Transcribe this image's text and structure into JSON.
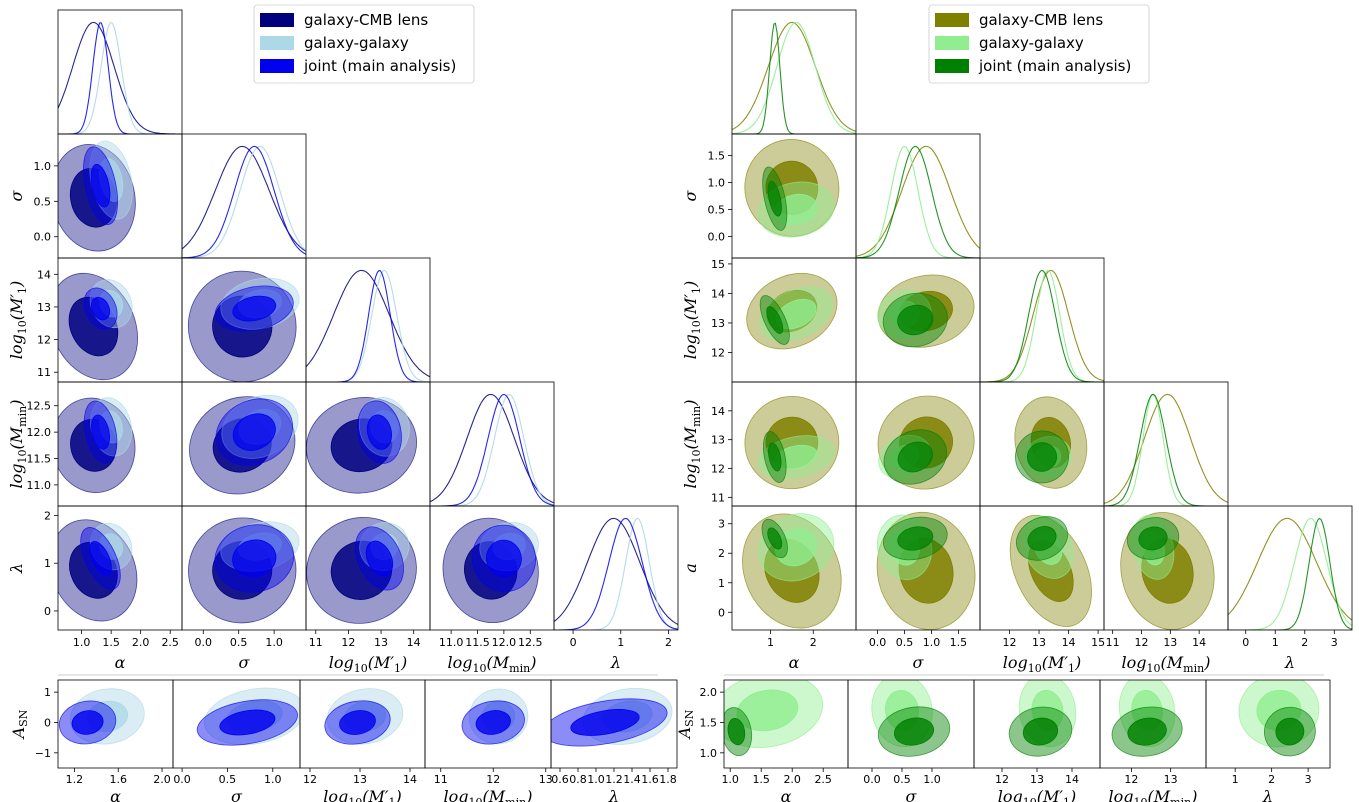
{
  "chart_data": [
    {
      "type": "corner",
      "panel": "left",
      "legend_placement": "top-right",
      "palette": {
        "lens": "#00007f",
        "gg": "#add8e6",
        "joint": "#0000ee"
      },
      "legend": [
        "galaxy-CMB lens",
        "galaxy-galaxy",
        "joint (main analysis)"
      ],
      "parameters": [
        {
          "label": "α",
          "range": [
            0.6,
            2.7
          ],
          "ticks": [
            {
              "v": 1.0,
              "t": "1.0"
            },
            {
              "v": 1.5,
              "t": "1.5"
            },
            {
              "v": 2.0,
              "t": "2.0"
            },
            {
              "v": 2.5,
              "t": "2.5"
            }
          ],
          "lens": {
            "mean": 1.2,
            "sd": 0.35
          },
          "gg": {
            "mean": 1.5,
            "sd": 0.17
          },
          "joint": {
            "mean": 1.32,
            "sd": 0.13
          }
        },
        {
          "label": "σ",
          "range": [
            -0.3,
            1.45
          ],
          "ticks": [
            {
              "v": 0.0,
              "t": "0.0"
            },
            {
              "v": 0.5,
              "t": "0.5"
            },
            {
              "v": 1.0,
              "t": "1.0"
            }
          ],
          "lens": {
            "mean": 0.55,
            "sd": 0.38
          },
          "gg": {
            "mean": 0.8,
            "sd": 0.28
          },
          "joint": {
            "mean": 0.72,
            "sd": 0.28
          }
        },
        {
          "label": "log",
          "range": [
            10.7,
            14.5
          ],
          "ticks": [
            {
              "v": 11,
              "t": "11"
            },
            {
              "v": 12,
              "t": "12"
            },
            {
              "v": 13,
              "t": "13"
            },
            {
              "v": 14,
              "t": "14"
            }
          ],
          "lens": {
            "mean": 12.4,
            "sd": 0.85
          },
          "gg": {
            "mean": 13.1,
            "sd": 0.38
          },
          "joint": {
            "mean": 12.95,
            "sd": 0.33
          }
        },
        {
          "label": "log",
          "range": [
            10.6,
            12.95
          ],
          "ticks": [
            {
              "v": 11.0,
              "t": "11.0"
            },
            {
              "v": 11.5,
              "t": "11.5"
            },
            {
              "v": 12.0,
              "t": "12.0"
            },
            {
              "v": 12.5,
              "t": "12.5"
            }
          ],
          "lens": {
            "mean": 11.75,
            "sd": 0.45
          },
          "gg": {
            "mean": 12.1,
            "sd": 0.28
          },
          "joint": {
            "mean": 12.0,
            "sd": 0.3
          }
        },
        {
          "label": "λ",
          "range": [
            -0.4,
            2.2
          ],
          "ticks": [
            {
              "v": 0,
              "t": "0"
            },
            {
              "v": 1,
              "t": "1"
            },
            {
              "v": 2,
              "t": "2"
            }
          ],
          "lens": {
            "mean": 0.85,
            "sd": 0.55
          },
          "gg": {
            "mean": 1.35,
            "sd": 0.25
          },
          "joint": {
            "mean": 1.1,
            "sd": 0.35
          }
        }
      ],
      "y_tick_rows": [
        [
          {
            "v": 0.0,
            "t": "0.0"
          },
          {
            "v": 0.5,
            "t": "0.5"
          },
          {
            "v": 1.0,
            "t": "1.0"
          }
        ],
        [
          {
            "v": 11,
            "t": "11"
          },
          {
            "v": 12,
            "t": "12"
          },
          {
            "v": 13,
            "t": "13"
          },
          {
            "v": 14,
            "t": "14"
          }
        ],
        [
          {
            "v": 11.0,
            "t": "11.0"
          },
          {
            "v": 11.5,
            "t": "11.5"
          },
          {
            "v": 12.0,
            "t": "12.0"
          },
          {
            "v": 12.5,
            "t": "12.5"
          }
        ],
        [
          {
            "v": 0,
            "t": "0"
          },
          {
            "v": 1,
            "t": "1"
          },
          {
            "v": 2,
            "t": "2"
          }
        ]
      ],
      "extra_row": {
        "label": "A",
        "label_sub": "SN",
        "range": [
          -1.5,
          1.4
        ],
        "ticks": [
          {
            "v": -1,
            "t": "−1"
          },
          {
            "v": 0,
            "t": "0"
          },
          {
            "v": 1,
            "t": "1"
          }
        ],
        "gg": {
          "mean": 0.2,
          "sd": 0.45
        },
        "joint": {
          "mean": 0.0,
          "sd": 0.35
        },
        "x_ticks": [
          [
            {
              "v": 1.2,
              "t": "1.2"
            },
            {
              "v": 1.6,
              "t": "1.6"
            },
            {
              "v": 2.0,
              "t": "2.0"
            }
          ],
          [
            {
              "v": 0.0,
              "t": "0.0"
            },
            {
              "v": 0.5,
              "t": "0.5"
            },
            {
              "v": 1.0,
              "t": "1.0"
            }
          ],
          [
            {
              "v": 12,
              "t": "12"
            },
            {
              "v": 13,
              "t": "13"
            },
            {
              "v": 14,
              "t": "14"
            }
          ],
          [
            {
              "v": 11,
              "t": "11"
            },
            {
              "v": 12,
              "t": "12"
            },
            {
              "v": 13,
              "t": "13"
            }
          ],
          [
            {
              "v": 0.6,
              "t": "0.6"
            },
            {
              "v": 0.8,
              "t": "0.8"
            },
            {
              "v": 1.0,
              "t": "1.0"
            },
            {
              "v": 1.2,
              "t": "1.2"
            },
            {
              "v": 1.4,
              "t": "1.4"
            },
            {
              "v": 1.6,
              "t": "1.6"
            },
            {
              "v": 1.8,
              "t": "1.8"
            }
          ]
        ],
        "x_ranges": [
          [
            1.05,
            2.1
          ],
          [
            -0.1,
            1.3
          ],
          [
            11.8,
            14.3
          ],
          [
            10.7,
            13.1
          ],
          [
            0.5,
            1.9
          ]
        ]
      }
    },
    {
      "type": "corner",
      "panel": "right",
      "legend_placement": "top-right",
      "palette": {
        "lens": "#7f7f00",
        "gg": "#90ee90",
        "joint": "#008000"
      },
      "legend": [
        "galaxy-CMB lens",
        "galaxy-galaxy",
        "joint (main analysis)"
      ],
      "parameters": [
        {
          "label": "α",
          "range": [
            0.1,
            3.0
          ],
          "ticks": [
            {
              "v": 1,
              "t": "1"
            },
            {
              "v": 2,
              "t": "2"
            }
          ],
          "lens": {
            "mean": 1.5,
            "sd": 0.55
          },
          "gg": {
            "mean": 1.6,
            "sd": 0.45
          },
          "joint": {
            "mean": 1.1,
            "sd": 0.12
          }
        },
        {
          "label": "σ",
          "range": [
            -0.4,
            1.9
          ],
          "ticks": [
            {
              "v": 0.0,
              "t": "0.0"
            },
            {
              "v": 0.5,
              "t": "0.5"
            },
            {
              "v": 1.0,
              "t": "1.0"
            },
            {
              "v": 1.5,
              "t": "1.5"
            }
          ],
          "lens": {
            "mean": 0.9,
            "sd": 0.45
          },
          "gg": {
            "mean": 0.5,
            "sd": 0.25
          },
          "joint": {
            "mean": 0.7,
            "sd": 0.3
          }
        },
        {
          "label": "log",
          "range": [
            11.0,
            15.2
          ],
          "ticks": [
            {
              "v": 12,
              "t": "12"
            },
            {
              "v": 13,
              "t": "13"
            },
            {
              "v": 14,
              "t": "14"
            },
            {
              "v": 15,
              "t": "15"
            }
          ],
          "lens": {
            "mean": 13.4,
            "sd": 0.6
          },
          "gg": {
            "mean": 13.3,
            "sd": 0.4
          },
          "joint": {
            "mean": 13.1,
            "sd": 0.45
          }
        },
        {
          "label": "log",
          "range": [
            10.7,
            15.0
          ],
          "ticks": [
            {
              "v": 11,
              "t": "11"
            },
            {
              "v": 12,
              "t": "12"
            },
            {
              "v": 13,
              "t": "13"
            },
            {
              "v": 14,
              "t": "14"
            }
          ],
          "lens": {
            "mean": 12.9,
            "sd": 0.8
          },
          "gg": {
            "mean": 12.4,
            "sd": 0.35
          },
          "joint": {
            "mean": 12.4,
            "sd": 0.45
          }
        },
        {
          "label": "a",
          "range": [
            -0.6,
            3.6
          ],
          "ticks": [
            {
              "v": 0,
              "t": "0"
            },
            {
              "v": 1,
              "t": "1"
            },
            {
              "v": 2,
              "t": "2"
            },
            {
              "v": 3,
              "t": "3"
            }
          ],
          "lens": {
            "mean": 1.4,
            "sd": 1.0
          },
          "gg": {
            "mean": 2.2,
            "sd": 0.55
          },
          "joint": {
            "mean": 2.5,
            "sd": 0.35
          }
        }
      ],
      "y_tick_rows": [
        [
          {
            "v": 0.0,
            "t": "0.0"
          },
          {
            "v": 0.5,
            "t": "0.5"
          },
          {
            "v": 1.0,
            "t": "1.0"
          },
          {
            "v": 1.5,
            "t": "1.5"
          }
        ],
        [
          {
            "v": 12,
            "t": "12"
          },
          {
            "v": 13,
            "t": "13"
          },
          {
            "v": 14,
            "t": "14"
          },
          {
            "v": 15,
            "t": "15"
          }
        ],
        [
          {
            "v": 11,
            "t": "11"
          },
          {
            "v": 12,
            "t": "12"
          },
          {
            "v": 13,
            "t": "13"
          },
          {
            "v": 14,
            "t": "14"
          }
        ],
        [
          {
            "v": 0,
            "t": "0"
          },
          {
            "v": 1,
            "t": "1"
          },
          {
            "v": 2,
            "t": "2"
          },
          {
            "v": 3,
            "t": "3"
          }
        ]
      ],
      "x_labels_override": [
        "α",
        "σ",
        "log",
        "log",
        "λ"
      ],
      "diag_last_ticks": [
        {
          "v": 0,
          "t": "0"
        },
        {
          "v": 1,
          "t": "1"
        },
        {
          "v": 2,
          "t": "2"
        },
        {
          "v": 3,
          "t": "3"
        }
      ],
      "extra_row": {
        "label": "A",
        "label_sub": "SN",
        "range": [
          0.75,
          2.2
        ],
        "ticks": [
          {
            "v": 1.0,
            "t": "1.0"
          },
          {
            "v": 1.5,
            "t": "1.5"
          },
          {
            "v": 2.0,
            "t": "2.0"
          }
        ],
        "gg": {
          "mean": 1.7,
          "sd": 0.3
        },
        "joint": {
          "mean": 1.35,
          "sd": 0.2
        },
        "x_ticks": [
          [
            {
              "v": 1.0,
              "t": "1.0"
            },
            {
              "v": 1.5,
              "t": "1.5"
            },
            {
              "v": 2.0,
              "t": "2.0"
            },
            {
              "v": 2.5,
              "t": "2.5"
            }
          ],
          [
            {
              "v": 0.0,
              "t": "0.0"
            },
            {
              "v": 0.5,
              "t": "0.5"
            },
            {
              "v": 1.0,
              "t": "1.0"
            }
          ],
          [
            {
              "v": 12,
              "t": "12"
            },
            {
              "v": 13,
              "t": "13"
            },
            {
              "v": 14,
              "t": "14"
            }
          ],
          [
            {
              "v": 12,
              "t": "12"
            },
            {
              "v": 13,
              "t": "13"
            }
          ],
          [
            {
              "v": 1,
              "t": "1"
            },
            {
              "v": 2,
              "t": "2"
            },
            {
              "v": 3,
              "t": "3"
            }
          ]
        ],
        "x_ranges": [
          [
            0.9,
            2.9
          ],
          [
            -0.4,
            1.7
          ],
          [
            11.2,
            14.8
          ],
          [
            11.2,
            13.9
          ],
          [
            0.2,
            3.6
          ]
        ]
      }
    }
  ]
}
